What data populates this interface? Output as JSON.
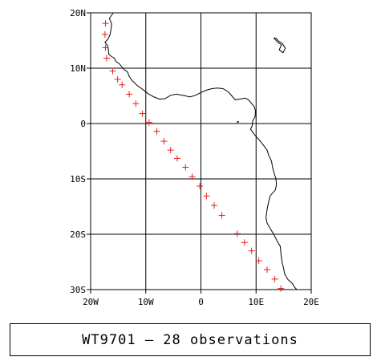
{
  "caption": "WT9701 — 28 observations",
  "map": {
    "lon_range": [
      -20,
      20
    ],
    "lat_range": [
      -30,
      20
    ],
    "lon_ticks": [
      {
        "value": -20,
        "label": "20W"
      },
      {
        "value": -10,
        "label": "10W"
      },
      {
        "value": 0,
        "label": "0"
      },
      {
        "value": 10,
        "label": "10E"
      },
      {
        "value": 20,
        "label": "20E"
      }
    ],
    "lat_ticks": [
      {
        "value": 20,
        "label": "20N"
      },
      {
        "value": 10,
        "label": "10N"
      },
      {
        "value": 0,
        "label": "0"
      },
      {
        "value": -10,
        "label": "10S"
      },
      {
        "value": -20,
        "label": "20S"
      },
      {
        "value": -30,
        "label": "30S"
      }
    ],
    "grid": true,
    "marker_color": "#e02020",
    "coast_color": "#000000",
    "observations": [
      {
        "lon": -17.3,
        "lat": 18.1
      },
      {
        "lon": -17.4,
        "lat": 16.1
      },
      {
        "lon": -17.3,
        "lat": 13.7
      },
      {
        "lon": -17.1,
        "lat": 11.8
      },
      {
        "lon": -16.0,
        "lat": 9.5
      },
      {
        "lon": -15.1,
        "lat": 8.0
      },
      {
        "lon": -14.3,
        "lat": 7.0
      },
      {
        "lon": -13.0,
        "lat": 5.3
      },
      {
        "lon": -11.8,
        "lat": 3.6
      },
      {
        "lon": -10.6,
        "lat": 1.8
      },
      {
        "lon": -9.4,
        "lat": 0.2
      },
      {
        "lon": -8.0,
        "lat": -1.4
      },
      {
        "lon": -6.7,
        "lat": -3.2
      },
      {
        "lon": -5.5,
        "lat": -4.8
      },
      {
        "lon": -4.3,
        "lat": -6.3
      },
      {
        "lon": -2.8,
        "lat": -7.9
      },
      {
        "lon": -1.6,
        "lat": -9.6
      },
      {
        "lon": -0.2,
        "lat": -11.3
      },
      {
        "lon": 1.0,
        "lat": -13.1
      },
      {
        "lon": 2.4,
        "lat": -14.8
      },
      {
        "lon": 3.8,
        "lat": -16.6
      },
      {
        "lon": 6.6,
        "lat": -19.9
      },
      {
        "lon": 7.9,
        "lat": -21.5
      },
      {
        "lon": 9.2,
        "lat": -23.0
      },
      {
        "lon": 10.5,
        "lat": -24.8
      },
      {
        "lon": 12.0,
        "lat": -26.4
      },
      {
        "lon": 13.4,
        "lat": -28.1
      },
      {
        "lon": 14.5,
        "lat": -29.8
      }
    ],
    "coastline": [
      [
        -15.9,
        20.0
      ],
      [
        -16.6,
        19.0
      ],
      [
        -16.2,
        18.0
      ],
      [
        -16.3,
        17.0
      ],
      [
        -16.5,
        16.0
      ],
      [
        -16.9,
        15.2
      ],
      [
        -17.4,
        14.7
      ],
      [
        -17.0,
        14.2
      ],
      [
        -16.8,
        13.5
      ],
      [
        -16.7,
        12.5
      ],
      [
        -16.2,
        12.1
      ],
      [
        -15.7,
        11.8
      ],
      [
        -15.4,
        11.2
      ],
      [
        -14.8,
        10.8
      ],
      [
        -14.0,
        9.8
      ],
      [
        -13.3,
        9.3
      ],
      [
        -13.0,
        8.5
      ],
      [
        -12.5,
        7.8
      ],
      [
        -11.6,
        6.9
      ],
      [
        -10.6,
        6.2
      ],
      [
        -9.6,
        5.4
      ],
      [
        -8.5,
        4.8
      ],
      [
        -7.5,
        4.4
      ],
      [
        -6.5,
        4.5
      ],
      [
        -5.5,
        5.1
      ],
      [
        -4.5,
        5.3
      ],
      [
        -3.3,
        5.1
      ],
      [
        -2.0,
        4.8
      ],
      [
        -1.0,
        5.1
      ],
      [
        0.2,
        5.7
      ],
      [
        1.2,
        6.1
      ],
      [
        2.0,
        6.3
      ],
      [
        3.0,
        6.4
      ],
      [
        4.0,
        6.3
      ],
      [
        5.0,
        5.7
      ],
      [
        5.6,
        5.0
      ],
      [
        6.2,
        4.3
      ],
      [
        7.0,
        4.4
      ],
      [
        8.0,
        4.6
      ],
      [
        8.6,
        4.3
      ],
      [
        9.2,
        3.6
      ],
      [
        9.7,
        3.0
      ],
      [
        9.9,
        2.2
      ],
      [
        9.8,
        1.2
      ],
      [
        9.4,
        0.5
      ],
      [
        9.3,
        -0.4
      ],
      [
        9.0,
        -1.0
      ],
      [
        9.7,
        -2.0
      ],
      [
        10.6,
        -3.0
      ],
      [
        11.4,
        -4.0
      ],
      [
        12.0,
        -4.8
      ],
      [
        12.3,
        -5.8
      ],
      [
        12.8,
        -6.8
      ],
      [
        13.0,
        -8.0
      ],
      [
        13.3,
        -9.0
      ],
      [
        13.6,
        -10.0
      ],
      [
        13.7,
        -11.0
      ],
      [
        13.5,
        -12.0
      ],
      [
        12.6,
        -13.0
      ],
      [
        12.3,
        -14.0
      ],
      [
        12.0,
        -15.5
      ],
      [
        11.8,
        -17.0
      ],
      [
        12.0,
        -18.0
      ],
      [
        12.6,
        -19.0
      ],
      [
        13.3,
        -20.2
      ],
      [
        13.8,
        -21.2
      ],
      [
        14.4,
        -22.2
      ],
      [
        14.5,
        -23.5
      ],
      [
        14.7,
        -25.0
      ],
      [
        15.0,
        -26.2
      ],
      [
        15.2,
        -27.2
      ],
      [
        15.8,
        -28.2
      ],
      [
        16.5,
        -28.8
      ],
      [
        17.0,
        -29.6
      ],
      [
        17.4,
        -30.0
      ]
    ],
    "island": [
      [
        13.2,
        15.5
      ],
      [
        13.9,
        14.7
      ],
      [
        14.6,
        14.2
      ],
      [
        14.2,
        13.3
      ],
      [
        14.9,
        12.8
      ],
      [
        15.3,
        13.6
      ],
      [
        14.8,
        14.4
      ],
      [
        14.1,
        14.9
      ],
      [
        13.6,
        15.4
      ],
      [
        13.2,
        15.5
      ]
    ],
    "dot": [
      6.7,
      0.3
    ]
  }
}
